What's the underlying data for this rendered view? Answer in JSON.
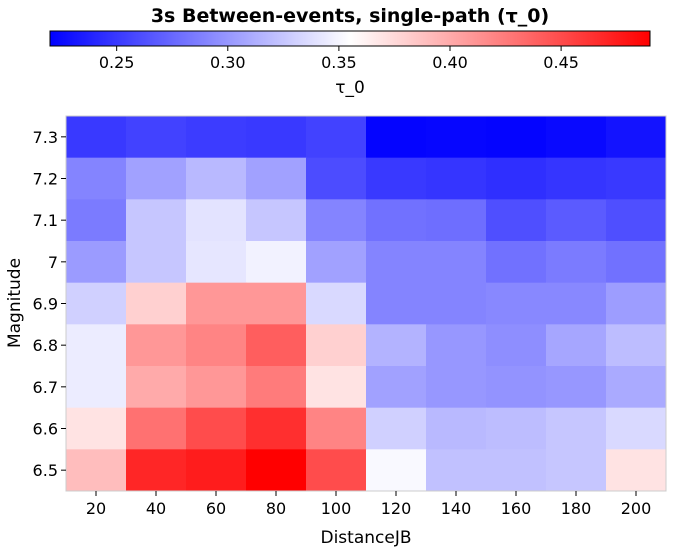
{
  "chart_data": {
    "type": "heatmap",
    "title": "3s Between-events, single-path (τ_0)",
    "xlabel": "DistanceJB",
    "ylabel": "Magnitude",
    "x": [
      "20",
      "40",
      "60",
      "80",
      "100",
      "120",
      "140",
      "160",
      "180",
      "200"
    ],
    "y": [
      "7.3",
      "7.2",
      "7.1",
      "7",
      "6.9",
      "6.8",
      "6.7",
      "6.6",
      "6.5"
    ],
    "values": [
      [
        0.25,
        0.255,
        0.252,
        0.25,
        0.255,
        0.222,
        0.223,
        0.222,
        0.225,
        0.23
      ],
      [
        0.29,
        0.305,
        0.318,
        0.305,
        0.26,
        0.25,
        0.248,
        0.245,
        0.248,
        0.25
      ],
      [
        0.285,
        0.325,
        0.34,
        0.325,
        0.29,
        0.28,
        0.278,
        0.262,
        0.268,
        0.262
      ],
      [
        0.302,
        0.325,
        0.342,
        0.348,
        0.305,
        0.29,
        0.29,
        0.28,
        0.285,
        0.28
      ],
      [
        0.33,
        0.38,
        0.41,
        0.41,
        0.335,
        0.29,
        0.29,
        0.292,
        0.292,
        0.303
      ],
      [
        0.345,
        0.41,
        0.42,
        0.44,
        0.38,
        0.315,
        0.3,
        0.295,
        0.308,
        0.32
      ],
      [
        0.345,
        0.4,
        0.41,
        0.425,
        0.37,
        0.305,
        0.3,
        0.298,
        0.3,
        0.31
      ],
      [
        0.37,
        0.43,
        0.45,
        0.465,
        0.42,
        0.33,
        0.318,
        0.32,
        0.325,
        0.335
      ],
      [
        0.39,
        0.47,
        0.475,
        0.49,
        0.45,
        0.352,
        0.322,
        0.322,
        0.325,
        0.37
      ]
    ],
    "colorbar": {
      "label": "τ_0",
      "range": [
        0.22,
        0.49
      ],
      "ticks": [
        "0.25",
        "0.30",
        "0.35",
        "0.40",
        "0.45"
      ],
      "tick_values": [
        0.25,
        0.3,
        0.35,
        0.4,
        0.45
      ],
      "placement": "top",
      "colormap": "bwr",
      "colors": {
        "low": "#0000ff",
        "mid": "#ffffff",
        "high": "#ff0000"
      }
    },
    "grid": false
  }
}
